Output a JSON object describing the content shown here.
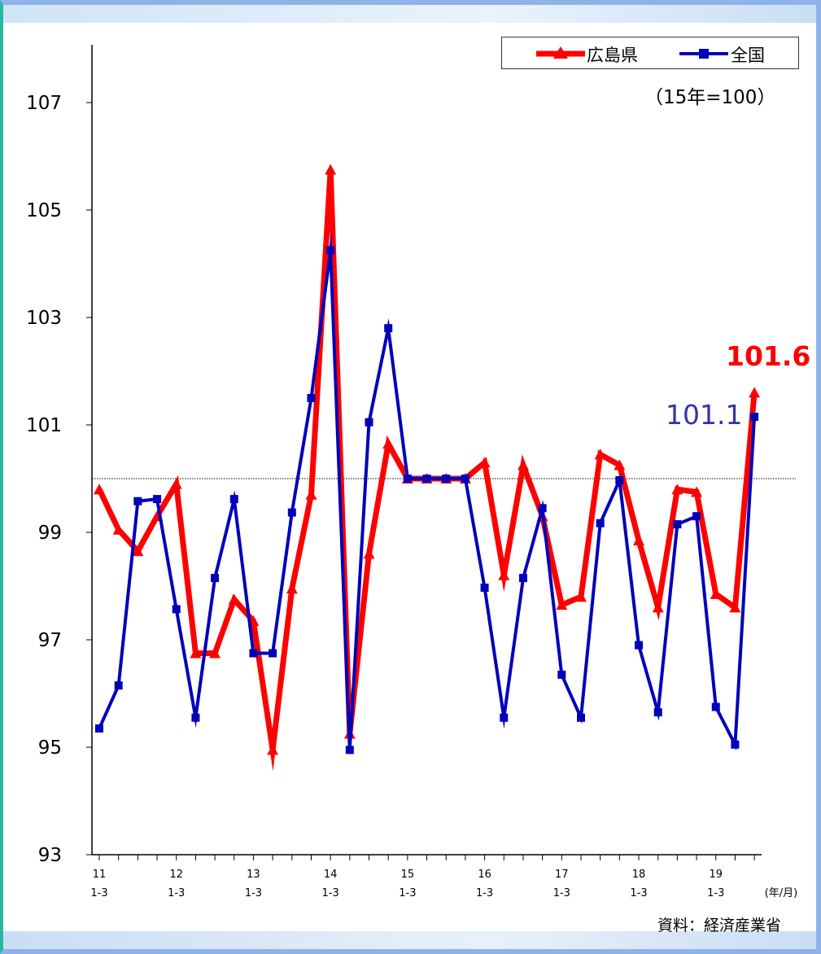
{
  "chart_data": {
    "type": "line",
    "unit_note": "（15年=100）",
    "source": "資料：経済産業省",
    "x_axis_unit": "(年/月)",
    "ylim": [
      93,
      108
    ],
    "y_ticks": [
      93,
      95,
      97,
      99,
      101,
      103,
      105,
      107
    ],
    "x_tick_labels": [
      {
        "year": "11",
        "month": "1-3"
      },
      {
        "year": "12",
        "month": "1-3"
      },
      {
        "year": "13",
        "month": "1-3"
      },
      {
        "year": "14",
        "month": "1-3"
      },
      {
        "year": "15",
        "month": "1-3"
      },
      {
        "year": "16",
        "month": "1-3"
      },
      {
        "year": "17",
        "month": "1-3"
      },
      {
        "year": "18",
        "month": "1-3"
      },
      {
        "year": "19",
        "month": "1-3"
      }
    ],
    "reference_line": 100,
    "series": [
      {
        "name": "広島県",
        "color": "#ff0000",
        "marker": "triangle",
        "values": [
          99.8,
          99.05,
          98.65,
          99.3,
          99.9,
          96.75,
          96.75,
          97.75,
          97.35,
          94.95,
          97.95,
          99.7,
          105.75,
          95.25,
          98.6,
          100.65,
          100.0,
          100.0,
          100.0,
          100.0,
          100.3,
          98.2,
          100.25,
          99.3,
          97.65,
          97.8,
          100.45,
          100.25,
          98.85,
          97.6,
          99.8,
          99.75,
          97.85,
          97.6,
          101.6
        ],
        "end_label": "101.6"
      },
      {
        "name": "全国",
        "color": "#0000bb",
        "marker": "square",
        "values": [
          95.35,
          96.15,
          99.58,
          99.62,
          97.57,
          95.55,
          98.15,
          99.62,
          96.75,
          96.75,
          99.37,
          101.5,
          104.25,
          94.95,
          101.05,
          102.8,
          100.0,
          100.0,
          100.0,
          100.0,
          97.97,
          95.55,
          98.15,
          99.45,
          96.35,
          95.55,
          99.17,
          99.97,
          96.9,
          95.65,
          99.15,
          99.3,
          95.75,
          95.05,
          101.15
        ],
        "end_label": "101.1"
      }
    ]
  }
}
